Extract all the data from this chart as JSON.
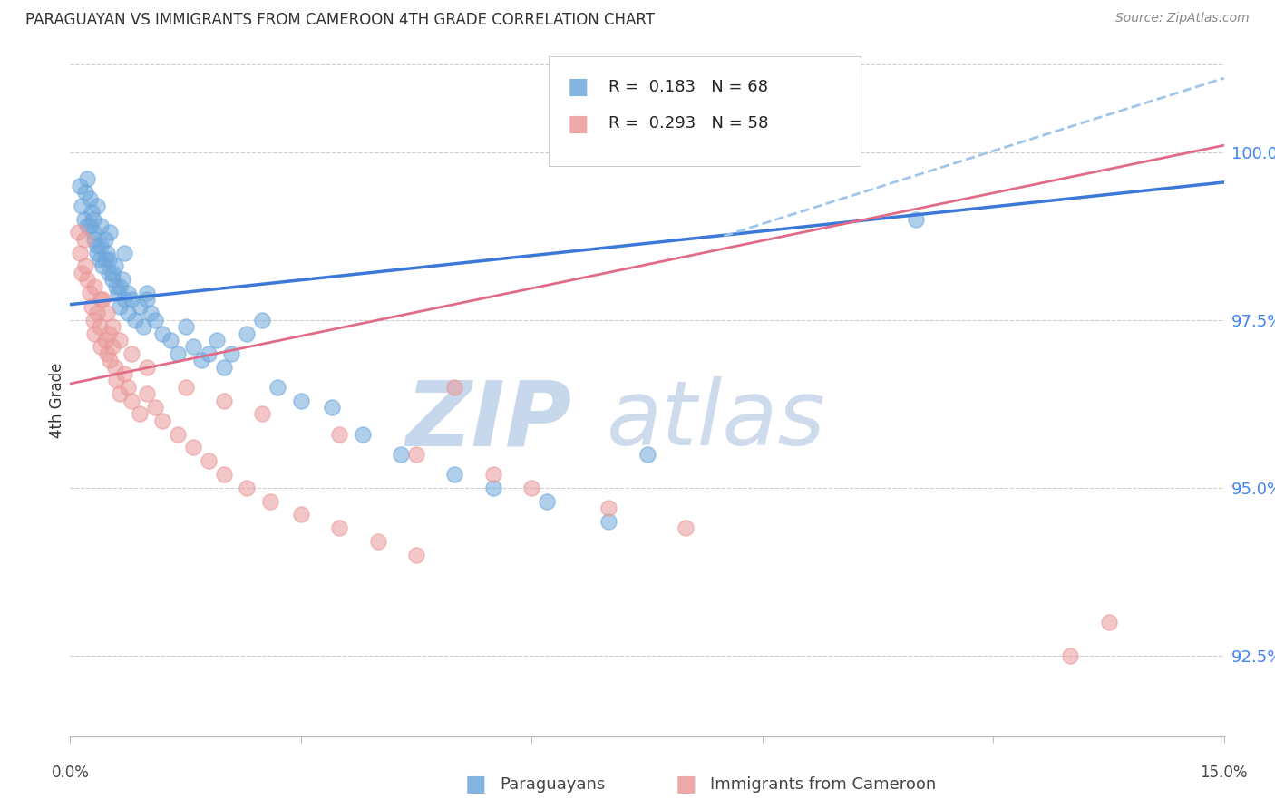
{
  "title": "PARAGUAYAN VS IMMIGRANTS FROM CAMEROON 4TH GRADE CORRELATION CHART",
  "source": "Source: ZipAtlas.com",
  "ylabel": "4th Grade",
  "xlim": [
    0.0,
    15.0
  ],
  "ylim": [
    91.3,
    101.3
  ],
  "yticks": [
    92.5,
    95.0,
    97.5,
    100.0
  ],
  "ytick_labels": [
    "92.5%",
    "95.0%",
    "97.5%",
    "100.0%"
  ],
  "legend_bottom_labels": [
    "Paraguayans",
    "Immigrants from Cameroon"
  ],
  "blue_color": "#6fa8dc",
  "pink_color": "#ea9999",
  "blue_line_color": "#3c78d8",
  "pink_line_color": "#e06c88",
  "blue_dashed_color": "#9fc5e8",
  "blue_R": 0.183,
  "blue_N": 68,
  "pink_R": 0.293,
  "pink_N": 58,
  "blue_line_x0": 0.0,
  "blue_line_y0": 97.73,
  "blue_line_x1": 15.0,
  "blue_line_y1": 99.55,
  "blue_dashed_x0": 8.5,
  "blue_dashed_y0": 98.75,
  "blue_dashed_x1": 15.0,
  "blue_dashed_y1": 101.1,
  "pink_line_x0": 0.0,
  "pink_line_y0": 96.55,
  "pink_line_x1": 15.0,
  "pink_line_y1": 100.1,
  "blue_x": [
    0.12,
    0.15,
    0.18,
    0.2,
    0.22,
    0.22,
    0.25,
    0.28,
    0.3,
    0.3,
    0.32,
    0.35,
    0.35,
    0.38,
    0.4,
    0.4,
    0.42,
    0.45,
    0.48,
    0.5,
    0.5,
    0.52,
    0.55,
    0.58,
    0.6,
    0.62,
    0.65,
    0.68,
    0.7,
    0.7,
    0.75,
    0.8,
    0.85,
    0.9,
    0.95,
    1.0,
    1.05,
    1.1,
    1.2,
    1.3,
    1.4,
    1.5,
    1.6,
    1.7,
    1.8,
    1.9,
    2.0,
    2.1,
    2.3,
    2.5,
    2.7,
    3.0,
    3.4,
    3.8,
    4.3,
    5.0,
    5.5,
    6.2,
    7.0,
    7.5,
    0.25,
    0.35,
    0.45,
    0.55,
    0.65,
    0.75,
    1.0,
    11.0
  ],
  "blue_y": [
    99.5,
    99.2,
    99.0,
    99.4,
    98.9,
    99.6,
    99.3,
    99.1,
    98.8,
    99.0,
    98.7,
    98.5,
    99.2,
    98.4,
    98.9,
    98.6,
    98.3,
    98.7,
    98.5,
    98.4,
    98.2,
    98.8,
    98.1,
    98.3,
    98.0,
    97.9,
    97.7,
    98.1,
    97.8,
    98.5,
    97.6,
    97.8,
    97.5,
    97.7,
    97.4,
    97.9,
    97.6,
    97.5,
    97.3,
    97.2,
    97.0,
    97.4,
    97.1,
    96.9,
    97.0,
    97.2,
    96.8,
    97.0,
    97.3,
    97.5,
    96.5,
    96.3,
    96.2,
    95.8,
    95.5,
    95.2,
    95.0,
    94.8,
    94.5,
    95.5,
    98.9,
    98.6,
    98.4,
    98.2,
    98.0,
    97.9,
    97.8,
    99.0
  ],
  "pink_x": [
    0.1,
    0.13,
    0.15,
    0.18,
    0.2,
    0.22,
    0.25,
    0.28,
    0.3,
    0.32,
    0.35,
    0.38,
    0.4,
    0.42,
    0.45,
    0.48,
    0.5,
    0.52,
    0.55,
    0.58,
    0.6,
    0.65,
    0.7,
    0.75,
    0.8,
    0.9,
    1.0,
    1.1,
    1.2,
    1.4,
    1.6,
    1.8,
    2.0,
    2.3,
    2.6,
    3.0,
    3.5,
    4.0,
    4.5,
    5.0,
    0.32,
    0.4,
    0.48,
    0.55,
    0.65,
    0.8,
    1.0,
    1.5,
    2.0,
    2.5,
    3.5,
    4.5,
    5.5,
    6.0,
    7.0,
    8.0,
    13.0,
    13.5
  ],
  "pink_y": [
    98.8,
    98.5,
    98.2,
    98.7,
    98.3,
    98.1,
    97.9,
    97.7,
    97.5,
    97.3,
    97.6,
    97.4,
    97.1,
    97.8,
    97.2,
    97.0,
    97.3,
    96.9,
    97.1,
    96.8,
    96.6,
    96.4,
    96.7,
    96.5,
    96.3,
    96.1,
    96.4,
    96.2,
    96.0,
    95.8,
    95.6,
    95.4,
    95.2,
    95.0,
    94.8,
    94.6,
    94.4,
    94.2,
    94.0,
    96.5,
    98.0,
    97.8,
    97.6,
    97.4,
    97.2,
    97.0,
    96.8,
    96.5,
    96.3,
    96.1,
    95.8,
    95.5,
    95.2,
    95.0,
    94.7,
    94.4,
    92.5,
    93.0
  ]
}
